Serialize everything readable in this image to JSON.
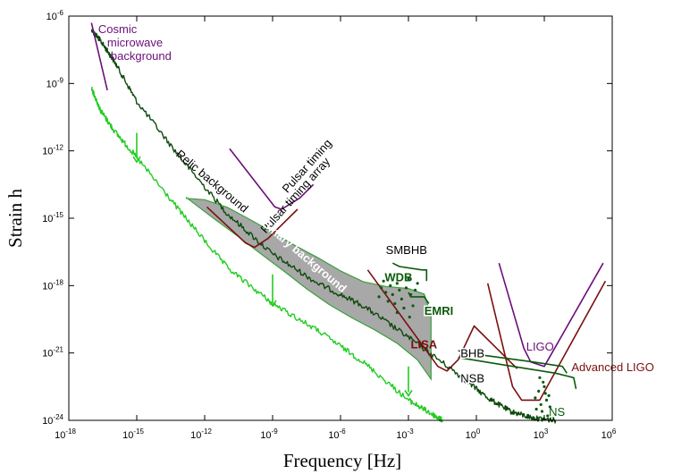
{
  "chart_data": {
    "type": "line",
    "xlabel": "Frequency [Hz]",
    "ylabel": "Strain h",
    "xlim_log10": [
      -18,
      6
    ],
    "ylim_log10": [
      -24,
      -6
    ],
    "x_ticks": [
      {
        "base": "10",
        "exp": "-18",
        "v": -18
      },
      {
        "base": "10",
        "exp": "-15",
        "v": -15
      },
      {
        "base": "10",
        "exp": "-12",
        "v": -12
      },
      {
        "base": "10",
        "exp": "-9",
        "v": -9
      },
      {
        "base": "10",
        "exp": "-6",
        "v": -6
      },
      {
        "base": "10",
        "exp": "-3",
        "v": -3
      },
      {
        "base": "10",
        "exp": "0",
        "v": 0
      },
      {
        "base": "10",
        "exp": "3",
        "v": 3
      },
      {
        "base": "10",
        "exp": "6",
        "v": 6
      }
    ],
    "y_ticks": [
      {
        "base": "10",
        "exp": "-6",
        "v": -6
      },
      {
        "base": "10",
        "exp": "-9",
        "v": -9
      },
      {
        "base": "10",
        "exp": "-12",
        "v": -12
      },
      {
        "base": "10",
        "exp": "-15",
        "v": -15
      },
      {
        "base": "10",
        "exp": "-18",
        "v": -18
      },
      {
        "base": "10",
        "exp": "-21",
        "v": -21
      },
      {
        "base": "10",
        "exp": "-24",
        "v": -24
      }
    ],
    "colors": {
      "relic_dark": "#0d4a0d",
      "relic_light": "#22cc22",
      "purple": "#6b0f7a",
      "darkred": "#7a0f0f",
      "green": "#0b5a0b",
      "binary_fill": "#a8a8a8",
      "binary_edge": "#3aa03a"
    },
    "series": [
      {
        "id": "relic-dark",
        "color_key": "relic_dark",
        "x": [
          -17.0,
          -16.6,
          -16.0,
          -15.0,
          -13.0,
          -11.0,
          -9.0,
          -7.0,
          -5.0,
          -3.0,
          -1.0,
          0.5,
          1.5,
          2.5,
          3.5
        ],
        "y": [
          -6.6,
          -7.1,
          -8.0,
          -9.8,
          -12.4,
          -14.8,
          -16.6,
          -17.9,
          -18.9,
          -20.3,
          -21.8,
          -23.0,
          -23.6,
          -23.9,
          -24.0
        ]
      },
      {
        "id": "relic-light",
        "color_key": "relic_light",
        "x": [
          -17.0,
          -16.6,
          -16.0,
          -15.0,
          -13.0,
          -11.0,
          -9.0,
          -7.0,
          -5.0,
          -3.0,
          -2.0,
          -1.5
        ],
        "y": [
          -9.2,
          -10.2,
          -11.1,
          -12.3,
          -14.8,
          -17.2,
          -18.8,
          -20.0,
          -21.4,
          -23.1,
          -23.7,
          -24.0
        ]
      },
      {
        "id": "cmb",
        "color_key": "purple",
        "x": [
          -17.0,
          -16.3
        ],
        "y": [
          -6.3,
          -9.3
        ]
      },
      {
        "id": "pulsar-timing",
        "color_key": "purple",
        "x": [
          -10.9,
          -8.9,
          -8.6,
          -7.8,
          -7.2
        ],
        "y": [
          -11.9,
          -14.5,
          -14.6,
          -14.1,
          -13.5
        ]
      },
      {
        "id": "pulsar-timing-array",
        "color_key": "darkred",
        "x": [
          -11.9,
          -10.2,
          -9.8,
          -9.2,
          -7.9
        ],
        "y": [
          -14.5,
          -16.1,
          -16.3,
          -15.9,
          -14.6
        ]
      },
      {
        "id": "lisa",
        "color_key": "darkred",
        "x": [
          -4.8,
          -1.7,
          -1.3,
          -0.8,
          -0.1,
          1.8
        ],
        "y": [
          -17.3,
          -21.6,
          -21.8,
          -21.3,
          -19.8,
          -21.7
        ]
      },
      {
        "id": "ligo",
        "color_key": "purple",
        "x": [
          1.0,
          2.1,
          2.4,
          3.0,
          5.6
        ],
        "y": [
          -17.0,
          -20.8,
          -21.4,
          -21.6,
          -17.0
        ]
      },
      {
        "id": "advanced-ligo",
        "color_key": "darkred",
        "x": [
          0.5,
          1.6,
          2.0,
          2.8,
          5.7
        ],
        "y": [
          -17.9,
          -22.5,
          -23.1,
          -23.1,
          -17.8
        ]
      },
      {
        "id": "smbhb",
        "color_key": "green",
        "x": [
          -3.7,
          -3.4,
          -2.4,
          -2.2,
          -2.2
        ],
        "y": [
          -17.0,
          -17.15,
          -17.3,
          -17.3,
          -17.8
        ]
      },
      {
        "id": "emri",
        "color_key": "green",
        "x": [
          -3.0,
          -2.9,
          -2.3,
          -2.1
        ],
        "y": [
          -18.3,
          -18.5,
          -18.5,
          -18.8
        ]
      },
      {
        "id": "bhb",
        "color_key": "green",
        "x": [
          -0.8,
          0.3,
          2.5,
          3.8,
          4.0
        ],
        "y": [
          -20.9,
          -21.1,
          -21.4,
          -21.6,
          -21.9
        ]
      },
      {
        "id": "nsb",
        "color_key": "green",
        "x": [
          -0.8,
          1.0,
          3.5,
          4.3,
          4.4
        ],
        "y": [
          -21.2,
          -21.5,
          -21.9,
          -22.1,
          -22.6
        ]
      }
    ],
    "binary_background": {
      "upper_x": [
        -12.8,
        -12.0,
        -11.0,
        -10.0,
        -9.0,
        -8.0,
        -7.0,
        -6.0,
        -5.0,
        -4.0,
        -3.0,
        -2.3,
        -2.0
      ],
      "upper_y": [
        -14.1,
        -14.2,
        -14.5,
        -15.0,
        -15.6,
        -16.2,
        -16.8,
        -17.3,
        -17.8,
        -18.0,
        -18.1,
        -18.4,
        -19.3
      ],
      "lower_x": [
        -2.0,
        -2.6,
        -3.5,
        -4.5,
        -5.5,
        -6.5,
        -7.5,
        -8.5,
        -9.5,
        -10.5,
        -11.5,
        -12.3,
        -12.8
      ],
      "lower_y": [
        -22.2,
        -21.3,
        -20.6,
        -20.0,
        -19.4,
        -18.8,
        -18.1,
        -17.4,
        -16.6,
        -15.8,
        -15.1,
        -14.5,
        -14.1
      ]
    },
    "arrows": [
      {
        "x": -15.0,
        "y_from": -11.2,
        "y_to": -12.5
      },
      {
        "x": -9.0,
        "y_from": -17.5,
        "y_to": -18.9
      },
      {
        "x": -3.0,
        "y_from": -21.6,
        "y_to": -22.9
      }
    ],
    "wdb_points": [
      [
        -4.2,
        -18.1
      ],
      [
        -4.0,
        -18.3
      ],
      [
        -3.8,
        -18.0
      ],
      [
        -3.7,
        -18.4
      ],
      [
        -3.5,
        -17.9
      ],
      [
        -3.4,
        -18.2
      ],
      [
        -3.3,
        -18.6
      ],
      [
        -3.1,
        -18.1
      ],
      [
        -3.0,
        -17.7
      ],
      [
        -2.9,
        -18.4
      ],
      [
        -2.8,
        -18.9
      ],
      [
        -2.7,
        -18.2
      ],
      [
        -3.9,
        -18.7
      ],
      [
        -3.6,
        -18.8
      ],
      [
        -4.3,
        -18.5
      ],
      [
        -3.2,
        -19.0
      ],
      [
        -2.6,
        -17.9
      ],
      [
        -3.5,
        -19.2
      ],
      [
        -2.95,
        -19.4
      ],
      [
        -4.1,
        -17.8
      ]
    ],
    "ns_points": [
      [
        2.6,
        -23.0
      ],
      [
        2.75,
        -22.7
      ],
      [
        2.85,
        -23.3
      ],
      [
        3.0,
        -22.5
      ],
      [
        3.1,
        -23.1
      ],
      [
        2.9,
        -23.6
      ],
      [
        3.15,
        -23.8
      ],
      [
        2.7,
        -23.9
      ],
      [
        3.2,
        -22.9
      ],
      [
        2.95,
        -22.3
      ],
      [
        2.8,
        -22.1
      ],
      [
        3.05,
        -22.8
      ],
      [
        2.65,
        -23.5
      ],
      [
        3.25,
        -23.4
      ]
    ],
    "annotations": [
      {
        "id": "cmb",
        "lines": [
          "Cosmic",
          "microwave",
          "background"
        ],
        "x": -16.7,
        "y": -6.75,
        "color_key": "purple",
        "anchor": "start",
        "rotate": 0,
        "bold": false,
        "halo": false,
        "line_dx": [
          0,
          10,
          14
        ]
      },
      {
        "id": "pulsar-timing",
        "lines": [
          "Pulsar timing"
        ],
        "x": -8.35,
        "y": -13.9,
        "color_key": null,
        "anchor": "start",
        "rotate": -48,
        "bold": false,
        "halo": false,
        "line_dx": [
          0
        ]
      },
      {
        "id": "pulsar-timing-array",
        "lines": [
          "Pulsar timing array"
        ],
        "x": -9.3,
        "y": -15.7,
        "color_key": null,
        "anchor": "start",
        "rotate": -48,
        "bold": false,
        "halo": false,
        "line_dx": [
          0
        ]
      },
      {
        "id": "relic",
        "lines": [
          "Relic background"
        ],
        "x": -13.3,
        "y": -12.2,
        "color_key": null,
        "anchor": "start",
        "rotate": 40,
        "bold": false,
        "halo": false,
        "line_dx": [
          0
        ]
      },
      {
        "id": "binary",
        "lines": [
          "Binary background"
        ],
        "x": -9.5,
        "y": -15.3,
        "color_key": null,
        "anchor": "start",
        "rotate": 40,
        "bold": true,
        "halo": false,
        "line_dx": [
          0
        ]
      },
      {
        "id": "smbhb",
        "lines": [
          "SMBHB"
        ],
        "x": -4.0,
        "y": -16.6,
        "color_key": null,
        "anchor": "start",
        "rotate": 0,
        "bold": false,
        "halo": false,
        "line_dx": [
          0
        ]
      },
      {
        "id": "wdb",
        "lines": [
          "WDB"
        ],
        "x": -4.05,
        "y": -17.8,
        "color_key": "green",
        "anchor": "start",
        "rotate": 0,
        "bold": true,
        "halo": false,
        "line_dx": [
          0
        ]
      },
      {
        "id": "emri",
        "lines": [
          "EMRI"
        ],
        "x": -2.3,
        "y": -19.3,
        "color_key": "green",
        "anchor": "start",
        "rotate": 0,
        "bold": true,
        "halo": true,
        "line_dx": [
          0
        ]
      },
      {
        "id": "lisa",
        "lines": [
          "LISA"
        ],
        "x": -2.9,
        "y": -20.8,
        "color_key": "darkred",
        "anchor": "start",
        "rotate": 0,
        "bold": true,
        "halo": false,
        "line_dx": [
          0
        ]
      },
      {
        "id": "bhb",
        "lines": [
          "BHB"
        ],
        "x": -0.7,
        "y": -21.2,
        "color_key": null,
        "anchor": "start",
        "rotate": 0,
        "bold": false,
        "halo": true,
        "line_dx": [
          0
        ]
      },
      {
        "id": "nsb",
        "lines": [
          "NSB"
        ],
        "x": -0.7,
        "y": -22.3,
        "color_key": null,
        "anchor": "start",
        "rotate": 0,
        "bold": false,
        "halo": true,
        "line_dx": [
          0
        ]
      },
      {
        "id": "ligo",
        "lines": [
          "LIGO"
        ],
        "x": 2.2,
        "y": -20.9,
        "color_key": "purple",
        "anchor": "start",
        "rotate": 0,
        "bold": false,
        "halo": false,
        "line_dx": [
          0
        ]
      },
      {
        "id": "adv-ligo",
        "lines": [
          "Advanced LIGO"
        ],
        "x": 4.2,
        "y": -21.8,
        "color_key": "darkred",
        "anchor": "start",
        "rotate": 0,
        "bold": false,
        "halo": false,
        "line_dx": [
          0
        ]
      },
      {
        "id": "ns",
        "lines": [
          "NS"
        ],
        "x": 3.2,
        "y": -23.8,
        "color_key": "green",
        "anchor": "start",
        "rotate": 0,
        "bold": false,
        "halo": false,
        "line_dx": [
          0
        ]
      }
    ]
  }
}
